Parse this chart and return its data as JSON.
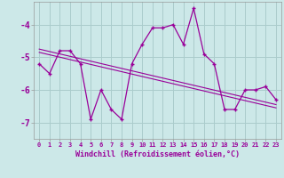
{
  "xlabel": "Windchill (Refroidissement éolien,°C)",
  "bg_color": "#cce8e8",
  "line_color": "#990099",
  "grid_color": "#aacccc",
  "hours": [
    0,
    1,
    2,
    3,
    4,
    5,
    6,
    7,
    8,
    9,
    10,
    11,
    12,
    13,
    14,
    15,
    16,
    17,
    18,
    19,
    20,
    21,
    22,
    23
  ],
  "windchill": [
    -5.2,
    -5.5,
    -4.8,
    -4.8,
    -5.2,
    -6.9,
    -6.0,
    -6.6,
    -6.9,
    -5.2,
    -4.6,
    -4.1,
    -4.1,
    -4.0,
    -4.6,
    -3.5,
    -4.9,
    -5.2,
    -6.6,
    -6.6,
    -6.0,
    -6.0,
    -5.9,
    -6.3
  ],
  "trend1_y": [
    -4.75,
    -6.45
  ],
  "trend2_y": [
    -4.85,
    -6.55
  ],
  "xlim": [
    -0.5,
    23.5
  ],
  "ylim": [
    -7.5,
    -3.3
  ],
  "yticks": [
    -7,
    -6,
    -5,
    -4
  ]
}
